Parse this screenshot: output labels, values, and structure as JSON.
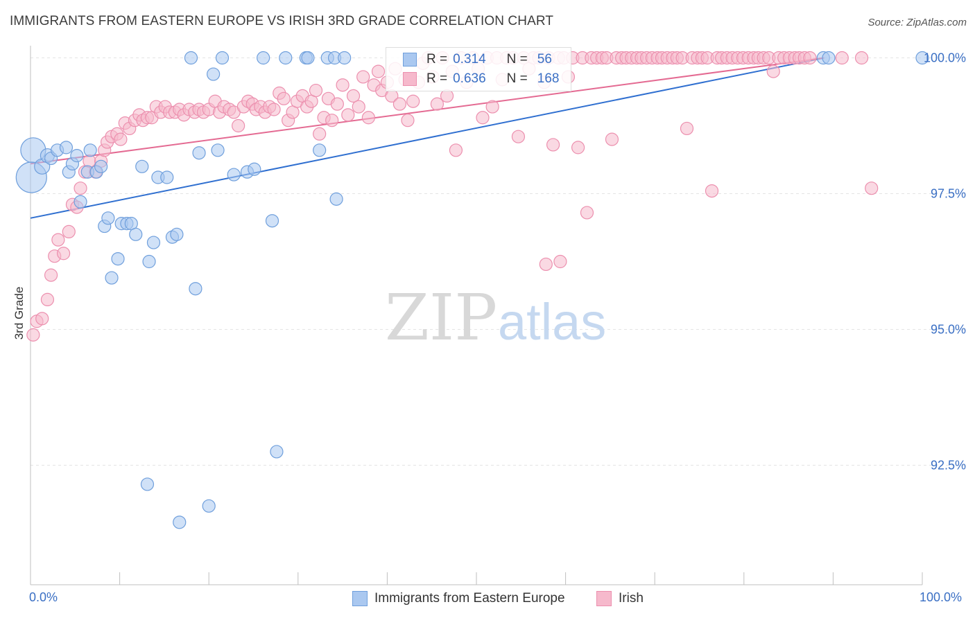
{
  "title": "IMMIGRANTS FROM EASTERN EUROPE VS IRISH 3RD GRADE CORRELATION CHART",
  "source": "Source: ZipAtlas.com",
  "watermark": {
    "zip": "ZIP",
    "atlas": "atlas"
  },
  "legend_top": {
    "rows": [
      {
        "r_label": "R =",
        "r_value": "0.314",
        "n_label": "N =",
        "n_value": "56"
      },
      {
        "r_label": "R =",
        "r_value": "0.636",
        "n_label": "N =",
        "n_value": "168"
      }
    ]
  },
  "legend_bottom": [
    "Immigrants from Eastern Europe",
    "Irish"
  ],
  "axis_text": {
    "x_min": "0.0%",
    "x_max": "100.0%",
    "ylabel": "3rd Grade"
  },
  "colors": {
    "blue_fill": "#aac8f0",
    "blue_stroke": "#6f9fdc",
    "blue_line": "#2f6fd0",
    "pink_fill": "#f6b9cc",
    "pink_stroke": "#ec8fae",
    "pink_line": "#e46a92",
    "axis_text": "#3a6fc4",
    "grid": "#e4e4e4"
  },
  "chart_data": {
    "type": "scatter",
    "title": "IMMIGRANTS FROM EASTERN EUROPE VS IRISH 3RD GRADE CORRELATION CHART",
    "xlabel": "",
    "ylabel": "3rd Grade",
    "xlim": [
      0,
      100
    ],
    "ylim": [
      90.3,
      100.3
    ],
    "yticks": [
      92.5,
      95.0,
      97.5,
      100.0
    ],
    "ytick_labels": [
      "92.5%",
      "95.0%",
      "97.5%",
      "100.0%"
    ],
    "xtick_labels": [
      "0.0%",
      "100.0%"
    ],
    "grid": true,
    "legend_position": "bottom",
    "series": [
      {
        "name": "Immigrants from Eastern Europe",
        "R": 0.314,
        "N": 56,
        "trend": {
          "x": [
            0,
            89
          ],
          "y": [
            97.05,
            100.0
          ]
        },
        "points": [
          [
            0.3,
            98.3,
            18
          ],
          [
            0.1,
            97.8,
            22
          ],
          [
            1.3,
            98.0,
            11
          ],
          [
            1.9,
            98.2,
            10
          ],
          [
            2.3,
            98.15,
            9
          ],
          [
            3.0,
            98.3,
            9
          ],
          [
            4.0,
            98.35,
            9
          ],
          [
            4.3,
            97.9,
            9
          ],
          [
            4.7,
            98.05,
            9
          ],
          [
            5.2,
            98.2,
            9
          ],
          [
            5.6,
            97.35,
            9
          ],
          [
            6.4,
            97.9,
            9
          ],
          [
            6.7,
            98.3,
            9
          ],
          [
            7.4,
            97.9,
            9
          ],
          [
            7.9,
            98.0,
            9
          ],
          [
            8.3,
            96.9,
            9
          ],
          [
            8.7,
            97.05,
            9
          ],
          [
            9.1,
            95.95,
            9
          ],
          [
            9.8,
            96.3,
            9
          ],
          [
            10.2,
            96.95,
            9
          ],
          [
            10.8,
            96.95,
            9
          ],
          [
            11.3,
            96.95,
            9
          ],
          [
            11.8,
            96.75,
            9
          ],
          [
            12.5,
            98.0,
            9
          ],
          [
            13.1,
            92.15,
            9
          ],
          [
            13.3,
            96.25,
            9
          ],
          [
            13.8,
            96.6,
            9
          ],
          [
            14.3,
            97.8,
            9
          ],
          [
            15.3,
            97.8,
            9
          ],
          [
            15.9,
            96.7,
            9
          ],
          [
            16.4,
            96.75,
            9
          ],
          [
            16.7,
            91.45,
            9
          ],
          [
            18.0,
            100.0,
            9
          ],
          [
            18.5,
            95.75,
            9
          ],
          [
            18.9,
            98.25,
            9
          ],
          [
            20.0,
            91.75,
            9
          ],
          [
            20.5,
            99.7,
            9
          ],
          [
            21.0,
            98.3,
            9
          ],
          [
            21.5,
            100.0,
            9
          ],
          [
            22.8,
            97.85,
            9
          ],
          [
            24.3,
            97.9,
            9
          ],
          [
            25.1,
            97.95,
            9
          ],
          [
            26.1,
            100.0,
            9
          ],
          [
            27.1,
            97.0,
            9
          ],
          [
            27.6,
            92.75,
            9
          ],
          [
            28.6,
            100.0,
            9
          ],
          [
            30.9,
            100.0,
            9
          ],
          [
            31.1,
            100.0,
            9
          ],
          [
            32.4,
            98.3,
            9
          ],
          [
            33.3,
            100.0,
            9
          ],
          [
            34.1,
            100.0,
            9
          ],
          [
            35.2,
            100.0,
            9
          ],
          [
            88.9,
            100.0,
            9
          ],
          [
            89.5,
            100.0,
            9
          ],
          [
            100.0,
            100.0,
            9
          ],
          [
            34.3,
            97.4,
            9
          ]
        ]
      },
      {
        "name": "Irish",
        "R": 0.636,
        "N": 168,
        "trend": {
          "x": [
            0,
            89
          ],
          "y": [
            98.05,
            100.0
          ]
        },
        "points": [
          [
            0.3,
            94.9,
            9
          ],
          [
            0.7,
            95.15,
            9
          ],
          [
            1.3,
            95.2,
            9
          ],
          [
            1.9,
            95.55,
            9
          ],
          [
            2.3,
            96.0,
            9
          ],
          [
            2.7,
            96.35,
            9
          ],
          [
            3.1,
            96.65,
            9
          ],
          [
            3.7,
            96.4,
            9
          ],
          [
            4.3,
            96.8,
            9
          ],
          [
            4.7,
            97.3,
            9
          ],
          [
            5.2,
            97.25,
            9
          ],
          [
            5.6,
            97.6,
            9
          ],
          [
            6.1,
            97.9,
            9
          ],
          [
            6.6,
            98.1,
            9
          ],
          [
            7.3,
            97.9,
            9
          ],
          [
            7.9,
            98.1,
            9
          ],
          [
            8.3,
            98.3,
            9
          ],
          [
            8.6,
            98.45,
            9
          ],
          [
            9.1,
            98.55,
            9
          ],
          [
            9.7,
            98.6,
            9
          ],
          [
            10.1,
            98.5,
            9
          ],
          [
            10.6,
            98.8,
            9
          ],
          [
            11.1,
            98.7,
            9
          ],
          [
            11.7,
            98.85,
            9
          ],
          [
            12.2,
            98.95,
            9
          ],
          [
            12.6,
            98.85,
            9
          ],
          [
            13.1,
            98.9,
            9
          ],
          [
            13.6,
            98.9,
            9
          ],
          [
            14.1,
            99.1,
            9
          ],
          [
            14.6,
            99.0,
            9
          ],
          [
            15.1,
            99.1,
            9
          ],
          [
            15.6,
            99.0,
            9
          ],
          [
            16.2,
            99.0,
            9
          ],
          [
            16.7,
            99.05,
            9
          ],
          [
            17.2,
            98.95,
            9
          ],
          [
            17.8,
            99.05,
            9
          ],
          [
            18.4,
            99.0,
            9
          ],
          [
            18.9,
            99.05,
            9
          ],
          [
            19.4,
            99.0,
            9
          ],
          [
            20.0,
            99.05,
            9
          ],
          [
            20.7,
            99.2,
            9
          ],
          [
            21.2,
            99.0,
            9
          ],
          [
            21.7,
            99.1,
            9
          ],
          [
            22.3,
            99.05,
            9
          ],
          [
            22.8,
            99.0,
            9
          ],
          [
            23.3,
            98.75,
            9
          ],
          [
            23.9,
            99.1,
            9
          ],
          [
            24.4,
            99.2,
            9
          ],
          [
            24.9,
            99.15,
            9
          ],
          [
            25.3,
            99.05,
            9
          ],
          [
            25.8,
            99.1,
            9
          ],
          [
            26.3,
            99.0,
            9
          ],
          [
            26.8,
            99.1,
            9
          ],
          [
            27.3,
            99.05,
            9
          ],
          [
            27.9,
            99.35,
            9
          ],
          [
            28.4,
            99.25,
            9
          ],
          [
            28.9,
            98.85,
            9
          ],
          [
            29.4,
            99.0,
            9
          ],
          [
            29.9,
            99.2,
            9
          ],
          [
            30.5,
            99.3,
            9
          ],
          [
            31.0,
            99.1,
            9
          ],
          [
            31.5,
            99.2,
            9
          ],
          [
            32.0,
            99.4,
            9
          ],
          [
            32.4,
            98.6,
            9
          ],
          [
            32.9,
            98.9,
            9
          ],
          [
            33.4,
            99.25,
            9
          ],
          [
            33.8,
            98.85,
            9
          ],
          [
            34.4,
            99.15,
            9
          ],
          [
            35.0,
            99.5,
            9
          ],
          [
            35.6,
            98.95,
            9
          ],
          [
            36.2,
            99.3,
            9
          ],
          [
            36.8,
            99.1,
            9
          ],
          [
            37.3,
            99.65,
            9
          ],
          [
            37.9,
            98.9,
            9
          ],
          [
            38.5,
            99.5,
            9
          ],
          [
            39.0,
            99.75,
            9
          ],
          [
            39.4,
            99.4,
            9
          ],
          [
            40.0,
            99.55,
            9
          ],
          [
            40.5,
            99.3,
            9
          ],
          [
            40.9,
            99.8,
            9
          ],
          [
            41.4,
            99.15,
            9
          ],
          [
            42.0,
            99.6,
            9
          ],
          [
            42.3,
            98.85,
            9
          ],
          [
            42.9,
            99.2,
            9
          ],
          [
            43.5,
            99.55,
            9
          ],
          [
            44.0,
            99.9,
            9
          ],
          [
            44.6,
            100.0,
            9
          ],
          [
            45.1,
            99.65,
            9
          ],
          [
            45.6,
            99.15,
            9
          ],
          [
            46.2,
            100.0,
            9
          ],
          [
            46.7,
            99.3,
            9
          ],
          [
            47.3,
            99.75,
            9
          ],
          [
            47.7,
            98.3,
            9
          ],
          [
            48.3,
            100.0,
            9
          ],
          [
            48.9,
            99.55,
            9
          ],
          [
            49.6,
            100.0,
            9
          ],
          [
            50.2,
            99.8,
            9
          ],
          [
            50.7,
            98.9,
            9
          ],
          [
            51.2,
            100.0,
            9
          ],
          [
            51.8,
            99.1,
            9
          ],
          [
            52.3,
            100.0,
            9
          ],
          [
            52.9,
            99.6,
            9
          ],
          [
            53.4,
            100.0,
            9
          ],
          [
            54.1,
            100.0,
            9
          ],
          [
            54.7,
            98.55,
            9
          ],
          [
            55.3,
            100.0,
            9
          ],
          [
            55.9,
            99.8,
            9
          ],
          [
            56.4,
            100.0,
            9
          ],
          [
            57.0,
            100.0,
            9
          ],
          [
            57.6,
            99.55,
            9
          ],
          [
            58.1,
            100.0,
            9
          ],
          [
            58.6,
            98.4,
            9
          ],
          [
            59.2,
            100.0,
            9
          ],
          [
            59.8,
            100.0,
            9
          ],
          [
            60.3,
            99.65,
            9
          ],
          [
            60.8,
            100.0,
            9
          ],
          [
            61.4,
            98.35,
            9
          ],
          [
            61.9,
            100.0,
            9
          ],
          [
            62.4,
            97.15,
            9
          ],
          [
            62.9,
            100.0,
            9
          ],
          [
            63.5,
            100.0,
            9
          ],
          [
            64.1,
            100.0,
            9
          ],
          [
            64.6,
            100.0,
            9
          ],
          [
            65.2,
            98.5,
            9
          ],
          [
            65.7,
            100.0,
            9
          ],
          [
            66.3,
            100.0,
            9
          ],
          [
            66.8,
            100.0,
            9
          ],
          [
            67.4,
            100.0,
            9
          ],
          [
            68.0,
            100.0,
            9
          ],
          [
            68.5,
            100.0,
            9
          ],
          [
            69.1,
            100.0,
            9
          ],
          [
            69.7,
            100.0,
            9
          ],
          [
            70.3,
            100.0,
            9
          ],
          [
            70.8,
            100.0,
            9
          ],
          [
            71.4,
            100.0,
            9
          ],
          [
            72.0,
            100.0,
            9
          ],
          [
            72.5,
            100.0,
            9
          ],
          [
            73.1,
            100.0,
            9
          ],
          [
            73.6,
            98.7,
            9
          ],
          [
            74.2,
            100.0,
            9
          ],
          [
            74.8,
            100.0,
            9
          ],
          [
            75.3,
            100.0,
            9
          ],
          [
            75.9,
            100.0,
            9
          ],
          [
            76.4,
            97.55,
            9
          ],
          [
            77.0,
            100.0,
            9
          ],
          [
            77.5,
            100.0,
            9
          ],
          [
            78.1,
            100.0,
            9
          ],
          [
            78.7,
            100.0,
            9
          ],
          [
            79.3,
            100.0,
            9
          ],
          [
            79.9,
            100.0,
            9
          ],
          [
            80.5,
            100.0,
            9
          ],
          [
            81.1,
            100.0,
            9
          ],
          [
            81.6,
            100.0,
            9
          ],
          [
            82.2,
            100.0,
            9
          ],
          [
            82.8,
            100.0,
            9
          ],
          [
            83.3,
            99.75,
            9
          ],
          [
            83.9,
            100.0,
            9
          ],
          [
            84.5,
            100.0,
            9
          ],
          [
            85.1,
            100.0,
            9
          ],
          [
            85.7,
            100.0,
            9
          ],
          [
            86.2,
            100.0,
            9
          ],
          [
            86.8,
            100.0,
            9
          ],
          [
            87.4,
            100.0,
            9
          ],
          [
            91.0,
            100.0,
            9
          ],
          [
            93.2,
            100.0,
            9
          ],
          [
            94.3,
            97.6,
            9
          ],
          [
            57.8,
            96.2,
            9
          ],
          [
            59.4,
            96.25,
            9
          ]
        ]
      }
    ]
  }
}
